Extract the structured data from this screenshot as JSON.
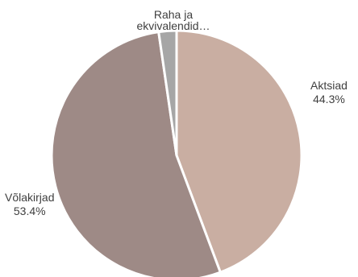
{
  "chart_data": {
    "type": "pie",
    "title": "",
    "slices": [
      {
        "label": "Aktsiad",
        "value": 44.3,
        "percent_label": "44.3%",
        "color": "#c9aea2"
      },
      {
        "label": "Võlakirjad",
        "value": 53.4,
        "percent_label": "53.4%",
        "color": "#9e8a86"
      },
      {
        "label": "Raha ja ekvivalendid…",
        "label_lines": [
          "Raha ja",
          "ekvivalendid…"
        ],
        "value": 2.3,
        "percent_label": "",
        "color": "#a6a6a6"
      }
    ],
    "start_angle_deg": 0,
    "direction": "clockwise",
    "legend": "none"
  }
}
